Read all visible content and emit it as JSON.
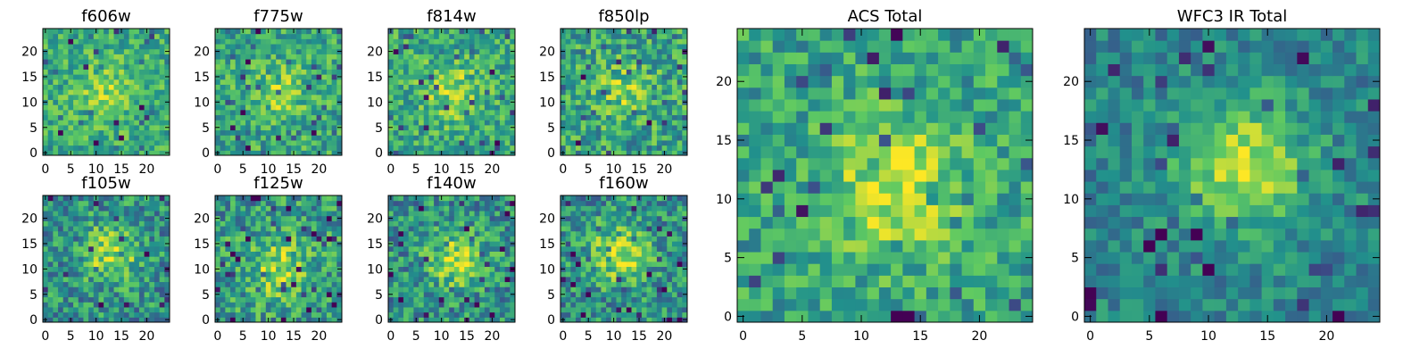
{
  "figure": {
    "colormap": "viridis",
    "palette": [
      "#440154",
      "#3b528b",
      "#21918c",
      "#5ec962",
      "#fde725"
    ]
  },
  "chart_data": [
    {
      "id": "f606w",
      "type": "heatmap",
      "title": "f606w",
      "grid_size": 25,
      "xlim": [
        0,
        24
      ],
      "ylim": [
        0,
        24
      ],
      "xticks": [
        0,
        5,
        10,
        15,
        20
      ],
      "yticks": [
        0,
        5,
        10,
        15,
        20
      ],
      "center": [
        12,
        12
      ],
      "peak": 0.2,
      "noise": 0.2,
      "base": 0.62,
      "seed": 11
    },
    {
      "id": "f775w",
      "type": "heatmap",
      "title": "f775w",
      "grid_size": 25,
      "xlim": [
        0,
        24
      ],
      "ylim": [
        0,
        24
      ],
      "xticks": [
        0,
        5,
        10,
        15,
        20
      ],
      "yticks": [
        0,
        5,
        10,
        15,
        20
      ],
      "center": [
        12,
        12
      ],
      "peak": 0.22,
      "noise": 0.22,
      "base": 0.6,
      "seed": 23
    },
    {
      "id": "f814w",
      "type": "heatmap",
      "title": "f814w",
      "grid_size": 25,
      "xlim": [
        0,
        24
      ],
      "ylim": [
        0,
        24
      ],
      "xticks": [
        0,
        5,
        10,
        15,
        20
      ],
      "yticks": [
        0,
        5,
        10,
        15,
        20
      ],
      "center": [
        12,
        12
      ],
      "peak": 0.25,
      "noise": 0.22,
      "base": 0.6,
      "seed": 37
    },
    {
      "id": "f850lp",
      "type": "heatmap",
      "title": "f850lp",
      "grid_size": 25,
      "xlim": [
        0,
        24
      ],
      "ylim": [
        0,
        24
      ],
      "xticks": [
        0,
        5,
        10,
        15,
        20
      ],
      "yticks": [
        0,
        5,
        10,
        15,
        20
      ],
      "center": [
        12,
        12
      ],
      "peak": 0.2,
      "noise": 0.25,
      "base": 0.58,
      "seed": 41
    },
    {
      "id": "f105w",
      "type": "heatmap",
      "title": "f105w",
      "grid_size": 25,
      "xlim": [
        0,
        24
      ],
      "ylim": [
        0,
        24
      ],
      "xticks": [
        0,
        5,
        10,
        15,
        20
      ],
      "yticks": [
        0,
        5,
        10,
        15,
        20
      ],
      "center": [
        13,
        13
      ],
      "peak": 0.35,
      "noise": 0.25,
      "base": 0.5,
      "seed": 53
    },
    {
      "id": "f125w",
      "type": "heatmap",
      "title": "f125w",
      "grid_size": 25,
      "xlim": [
        0,
        24
      ],
      "ylim": [
        0,
        24
      ],
      "xticks": [
        0,
        5,
        10,
        15,
        20
      ],
      "yticks": [
        0,
        5,
        10,
        15,
        20
      ],
      "center": [
        12,
        10
      ],
      "peak": 0.3,
      "noise": 0.25,
      "base": 0.55,
      "seed": 67
    },
    {
      "id": "f140w",
      "type": "heatmap",
      "title": "f140w",
      "grid_size": 25,
      "xlim": [
        0,
        24
      ],
      "ylim": [
        0,
        24
      ],
      "xticks": [
        0,
        5,
        10,
        15,
        20
      ],
      "yticks": [
        0,
        5,
        10,
        15,
        20
      ],
      "center": [
        13,
        12
      ],
      "peak": 0.35,
      "noise": 0.25,
      "base": 0.5,
      "seed": 71
    },
    {
      "id": "f160w",
      "type": "heatmap",
      "title": "f160w",
      "grid_size": 25,
      "xlim": [
        0,
        24
      ],
      "ylim": [
        0,
        24
      ],
      "xticks": [
        0,
        5,
        10,
        15,
        20
      ],
      "yticks": [
        0,
        5,
        10,
        15,
        20
      ],
      "center": [
        11,
        13
      ],
      "peak": 0.4,
      "noise": 0.25,
      "base": 0.5,
      "seed": 83
    },
    {
      "id": "acs-total",
      "type": "heatmap",
      "title": "ACS Total",
      "grid_size": 25,
      "xlim": [
        0,
        24
      ],
      "ylim": [
        0,
        24
      ],
      "xticks": [
        0,
        5,
        10,
        15,
        20
      ],
      "yticks": [
        0,
        5,
        10,
        15,
        20
      ],
      "center": [
        13,
        11
      ],
      "peak": 0.35,
      "noise": 0.2,
      "base": 0.58,
      "seed": 97
    },
    {
      "id": "wfc3-ir-total",
      "type": "heatmap",
      "title": "WFC3 IR Total",
      "grid_size": 25,
      "xlim": [
        0,
        24
      ],
      "ylim": [
        0,
        24
      ],
      "xticks": [
        0,
        5,
        10,
        15,
        20
      ],
      "yticks": [
        0,
        5,
        10,
        15,
        20
      ],
      "center": [
        13,
        13
      ],
      "peak": 0.45,
      "noise": 0.16,
      "base": 0.45,
      "seed": 101
    }
  ]
}
